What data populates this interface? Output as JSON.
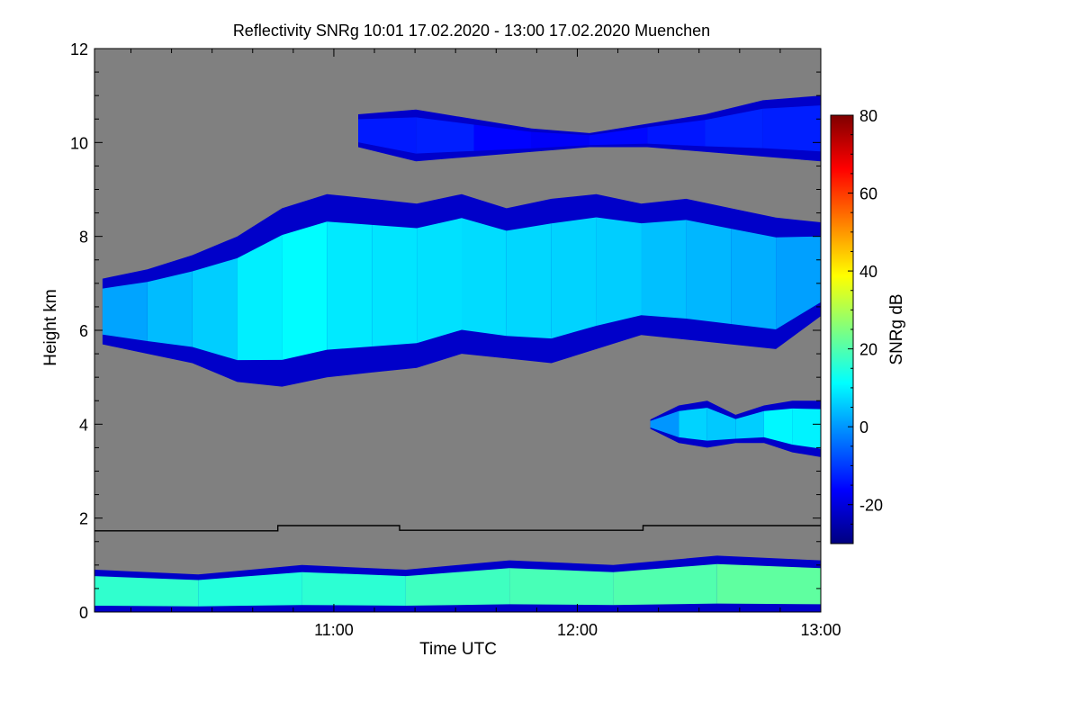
{
  "chart_data": {
    "type": "heatmap",
    "title": "Reflectivity SNRg   10:01 17.02.2020 - 13:00 17.02.2020 Muenchen",
    "xlabel": "Time UTC",
    "ylabel": "Height km",
    "x_range_hours": [
      10.017,
      13.0
    ],
    "y_range_km": [
      0,
      12
    ],
    "x_ticks": [
      {
        "label": "11:00",
        "value": 11.0
      },
      {
        "label": "12:00",
        "value": 12.0
      },
      {
        "label": "13:00",
        "value": 13.0
      }
    ],
    "y_ticks": [
      {
        "label": "0",
        "value": 0
      },
      {
        "label": "2",
        "value": 2
      },
      {
        "label": "4",
        "value": 4
      },
      {
        "label": "6",
        "value": 6
      },
      {
        "label": "8",
        "value": 8
      },
      {
        "label": "10",
        "value": 10
      },
      {
        "label": "12",
        "value": 12
      }
    ],
    "colorbar": {
      "label": "SNRg dB",
      "range": [
        -30,
        80
      ],
      "ticks": [
        {
          "label": "80",
          "value": 80
        },
        {
          "label": "60",
          "value": 60
        },
        {
          "label": "40",
          "value": 40
        },
        {
          "label": "20",
          "value": 20
        },
        {
          "label": "0",
          "value": 0
        },
        {
          "label": "-20",
          "value": -20
        }
      ],
      "colors": [
        "#00007f",
        "#0000ff",
        "#007fff",
        "#00ffff",
        "#7fff7f",
        "#ffff00",
        "#ff7f00",
        "#ff0000",
        "#7f0000"
      ]
    },
    "background_color": "#808080",
    "boundary_line": {
      "name": "melting layer height",
      "color": "#000000",
      "points": [
        [
          10.017,
          1.73
        ],
        [
          10.77,
          1.73
        ],
        [
          10.77,
          1.84
        ],
        [
          11.27,
          1.84
        ],
        [
          11.27,
          1.74
        ],
        [
          12.27,
          1.74
        ],
        [
          12.27,
          1.84
        ],
        [
          13.0,
          1.84
        ]
      ]
    },
    "echo_layers": [
      {
        "name": "main-cloud-layer",
        "t_start": 10.05,
        "t_end": 13.0,
        "top_km": [
          7.1,
          7.3,
          7.6,
          8.0,
          8.6,
          8.9,
          8.8,
          8.7,
          8.9,
          8.6,
          8.8,
          8.9,
          8.7,
          8.8,
          8.6,
          8.4,
          8.3
        ],
        "base_km": [
          5.7,
          5.5,
          5.3,
          4.9,
          4.8,
          5.0,
          5.1,
          5.2,
          5.5,
          5.4,
          5.3,
          5.6,
          5.9,
          5.8,
          5.7,
          5.6,
          6.3
        ],
        "snr_db": [
          0,
          3,
          5,
          7,
          12,
          10,
          8,
          9,
          7,
          8,
          6,
          7,
          5,
          4,
          3,
          2,
          0
        ]
      },
      {
        "name": "cirrus-layer",
        "t_start": 11.1,
        "t_end": 13.0,
        "top_km": [
          10.6,
          10.7,
          10.5,
          10.3,
          10.2,
          10.4,
          10.6,
          10.9,
          11.0
        ],
        "base_km": [
          9.9,
          9.6,
          9.7,
          9.8,
          9.9,
          9.9,
          9.8,
          9.7,
          9.6
        ],
        "snr_db": [
          -15,
          -12,
          -14,
          -18,
          -16,
          -15,
          -13,
          -12,
          -14
        ]
      },
      {
        "name": "lower-cloud-layer",
        "t_start": 12.3,
        "t_end": 13.0,
        "top_km": [
          4.1,
          4.4,
          4.5,
          4.2,
          4.4,
          4.5,
          4.5
        ],
        "base_km": [
          3.9,
          3.6,
          3.5,
          3.6,
          3.6,
          3.4,
          3.3
        ],
        "snr_db": [
          -5,
          5,
          8,
          3,
          9,
          12,
          8
        ]
      },
      {
        "name": "near-ground-echoes",
        "t_start": 10.017,
        "t_end": 13.0,
        "top_km": [
          0.9,
          0.8,
          1.0,
          0.9,
          1.1,
          1.0,
          1.2,
          1.1
        ],
        "base_km": [
          0.0,
          0.0,
          0.0,
          0.0,
          0.0,
          0.0,
          0.0,
          0.0
        ],
        "snr_db": [
          15,
          18,
          12,
          20,
          16,
          22,
          18,
          25
        ]
      }
    ]
  }
}
